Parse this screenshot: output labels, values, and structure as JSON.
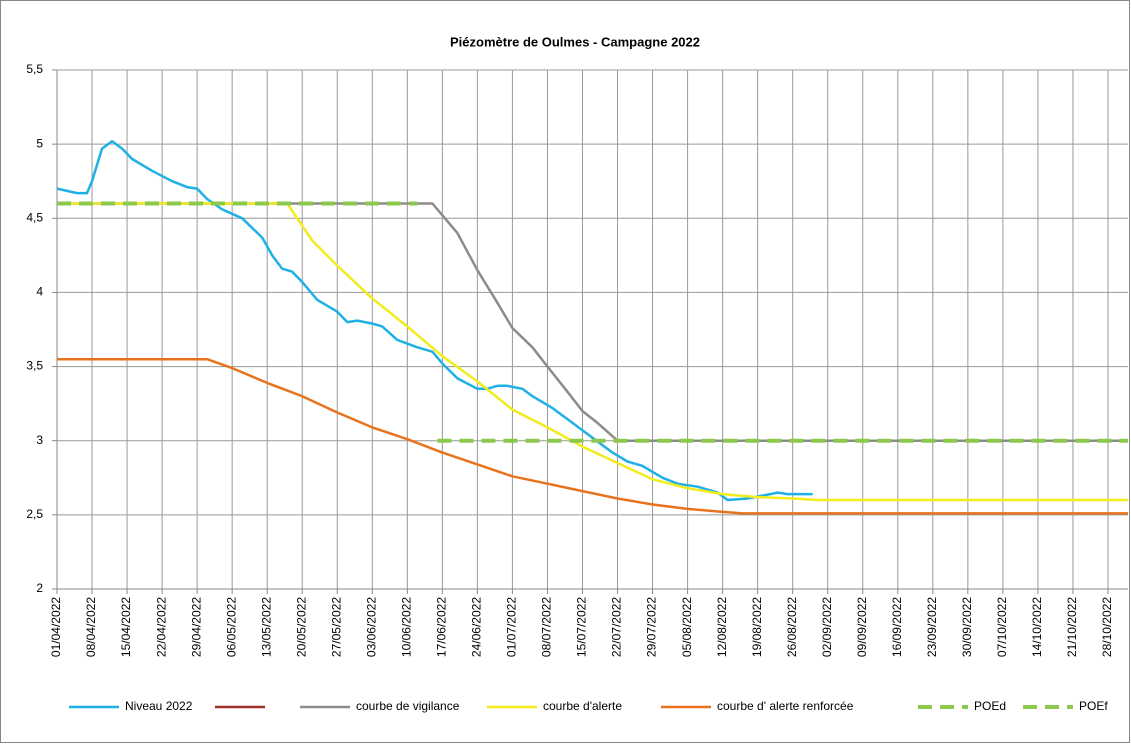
{
  "chart_data": {
    "type": "line",
    "title": "Piézomètre de Oulmes - Campagne 2022",
    "xlim": [
      "01/04/2022",
      "01/11/2022"
    ],
    "xticks": [
      "01/04/2022",
      "08/04/2022",
      "15/04/2022",
      "22/04/2022",
      "29/04/2022",
      "06/05/2022",
      "13/05/2022",
      "20/05/2022",
      "27/05/2022",
      "03/06/2022",
      "10/06/2022",
      "17/06/2022",
      "24/06/2022",
      "01/07/2022",
      "08/07/2022",
      "15/07/2022",
      "22/07/2022",
      "29/07/2022",
      "05/08/2022",
      "12/08/2022",
      "19/08/2022",
      "26/08/2022",
      "02/09/2022",
      "09/09/2022",
      "16/09/2022",
      "23/09/2022",
      "30/09/2022",
      "07/10/2022",
      "14/10/2022",
      "21/10/2022",
      "28/10/2022"
    ],
    "ylim": [
      2,
      5.5
    ],
    "yticks": [
      2,
      {
        "value": 2.5,
        "label": "2,5"
      },
      3,
      {
        "value": 3.5,
        "label": "3,5"
      },
      4,
      {
        "value": 4.5,
        "label": "4,5"
      },
      5,
      {
        "value": 5.5,
        "label": "5,5"
      }
    ],
    "grid": true,
    "legend": "bottom",
    "series": [
      {
        "name": "Niveau 2022",
        "color": "#1fb0e6",
        "dash": false,
        "x": [
          "01/04/2022",
          "05/04/2022",
          "07/04/2022",
          "08/04/2022",
          "10/04/2022",
          "12/04/2022",
          "14/04/2022",
          "16/04/2022",
          "20/04/2022",
          "24/04/2022",
          "27/04/2022",
          "29/04/2022",
          "01/05/2022",
          "04/05/2022",
          "08/05/2022",
          "12/05/2022",
          "14/05/2022",
          "16/05/2022",
          "18/05/2022",
          "20/05/2022",
          "23/05/2022",
          "25/05/2022",
          "27/05/2022",
          "29/05/2022",
          "31/05/2022",
          "03/06/2022",
          "05/06/2022",
          "08/06/2022",
          "12/06/2022",
          "15/06/2022",
          "17/06/2022",
          "20/06/2022",
          "24/06/2022",
          "26/06/2022",
          "28/06/2022",
          "30/06/2022",
          "03/07/2022",
          "05/07/2022",
          "09/07/2022",
          "13/07/2022",
          "17/07/2022",
          "21/07/2022",
          "24/07/2022",
          "27/07/2022",
          "31/07/2022",
          "03/08/2022",
          "07/08/2022",
          "11/08/2022",
          "13/08/2022",
          "17/08/2022",
          "20/08/2022",
          "23/08/2022",
          "25/08/2022",
          "30/08/2022"
        ],
        "values": [
          4.7,
          4.67,
          4.67,
          4.75,
          4.97,
          5.02,
          4.97,
          4.9,
          4.82,
          4.75,
          4.71,
          4.7,
          4.63,
          4.56,
          4.5,
          4.37,
          4.25,
          4.16,
          4.14,
          4.07,
          3.95,
          3.91,
          3.87,
          3.8,
          3.81,
          3.79,
          3.77,
          3.68,
          3.63,
          3.6,
          3.52,
          3.42,
          3.35,
          3.35,
          3.37,
          3.37,
          3.35,
          3.3,
          3.22,
          3.12,
          3.02,
          2.92,
          2.86,
          2.83,
          2.75,
          2.71,
          2.69,
          2.65,
          2.6,
          2.61,
          2.63,
          2.65,
          2.64,
          2.64
        ]
      },
      {
        "name": null,
        "color": "#a0302b",
        "dash": false,
        "x": [],
        "values": []
      },
      {
        "name": "courbe de vigilance",
        "color": "#8c8c8c",
        "dash": false,
        "x": [
          "01/04/2022",
          "15/06/2022",
          "20/06/2022",
          "24/06/2022",
          "28/06/2022",
          "01/07/2022",
          "05/07/2022",
          "08/07/2022",
          "12/07/2022",
          "15/07/2022",
          "18/07/2022",
          "22/07/2022",
          "01/11/2022"
        ],
        "values": [
          4.6,
          4.6,
          4.4,
          4.15,
          3.93,
          3.76,
          3.63,
          3.5,
          3.33,
          3.2,
          3.12,
          3.0,
          3.0
        ]
      },
      {
        "name": "courbe d'alerte",
        "color": "#f2ec1c",
        "dash": false,
        "x": [
          "01/04/2022",
          "17/05/2022",
          "22/05/2022",
          "27/05/2022",
          "03/06/2022",
          "10/06/2022",
          "17/06/2022",
          "24/06/2022",
          "01/07/2022",
          "08/07/2022",
          "15/07/2022",
          "22/07/2022",
          "29/07/2022",
          "05/08/2022",
          "12/08/2022",
          "19/08/2022",
          "26/08/2022",
          "31/08/2022",
          "01/11/2022"
        ],
        "values": [
          4.6,
          4.6,
          4.35,
          4.18,
          3.96,
          3.77,
          3.57,
          3.4,
          3.21,
          3.09,
          2.96,
          2.85,
          2.74,
          2.68,
          2.64,
          2.62,
          2.61,
          2.6,
          2.6
        ]
      },
      {
        "name": "courbe d' alerte renforcée",
        "color": "#e8731f",
        "dash": false,
        "x": [
          "01/04/2022",
          "01/05/2022",
          "06/05/2022",
          "13/05/2022",
          "20/05/2022",
          "27/05/2022",
          "03/06/2022",
          "10/06/2022",
          "17/06/2022",
          "24/06/2022",
          "01/07/2022",
          "08/07/2022",
          "15/07/2022",
          "22/07/2022",
          "29/07/2022",
          "05/08/2022",
          "12/08/2022",
          "16/08/2022",
          "01/11/2022"
        ],
        "values": [
          3.55,
          3.55,
          3.49,
          3.39,
          3.3,
          3.19,
          3.09,
          3.01,
          2.92,
          2.84,
          2.76,
          2.71,
          2.66,
          2.61,
          2.57,
          2.54,
          2.52,
          2.51,
          2.51
        ]
      },
      {
        "name": "POEd",
        "color": "#8cc84b",
        "dash": true,
        "x": [
          "01/04/2022",
          "12/06/2022"
        ],
        "values": [
          4.6,
          4.6
        ]
      },
      {
        "name": "POEf",
        "color": "#8cc84b",
        "dash": true,
        "x": [
          "16/06/2022",
          "01/11/2022"
        ],
        "values": [
          3.0,
          3.0
        ]
      }
    ]
  }
}
